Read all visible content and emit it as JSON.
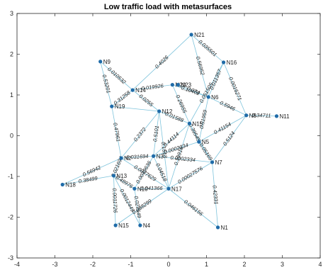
{
  "chart_data": {
    "type": "network",
    "title": "Low traffic load with metasurfaces",
    "xlim": [
      -4,
      4
    ],
    "ylim": [
      -3,
      3
    ],
    "xticks": [
      -4,
      -3,
      -2,
      -1,
      0,
      1,
      2,
      3,
      4
    ],
    "yticks": [
      -3,
      -2,
      -1,
      0,
      1,
      2,
      3
    ],
    "grid": false,
    "colors": {
      "node": "#1f6ba8",
      "edge": "#7fc4dc",
      "axes": "#262626"
    },
    "nodes": [
      {
        "name": "N1",
        "x": 1.3,
        "y": -2.25
      },
      {
        "name": "N2",
        "x": -1.25,
        "y": -0.55
      },
      {
        "name": "N3",
        "x": -0.4,
        "y": -0.5
      },
      {
        "name": "N4",
        "x": -0.75,
        "y": -2.2
      },
      {
        "name": "N5",
        "x": 0.8,
        "y": -0.15
      },
      {
        "name": "N6",
        "x": 1.05,
        "y": 0.95
      },
      {
        "name": "N7",
        "x": 1.15,
        "y": -0.65
      },
      {
        "name": "N8",
        "x": 2.05,
        "y": 0.5
      },
      {
        "name": "N9",
        "x": -1.8,
        "y": 1.82
      },
      {
        "name": "N10",
        "x": -0.9,
        "y": -1.3
      },
      {
        "name": "N11",
        "x": 2.85,
        "y": 0.48
      },
      {
        "name": "N12",
        "x": -0.25,
        "y": 0.6
      },
      {
        "name": "N13",
        "x": -1.45,
        "y": -0.98
      },
      {
        "name": "N14",
        "x": -0.95,
        "y": 1.12
      },
      {
        "name": "N15",
        "x": 0.55,
        "y": 0.3
      },
      {
        "name": "N16",
        "x": 1.45,
        "y": 1.8
      },
      {
        "name": "N17",
        "x": 0.0,
        "y": -1.3
      },
      {
        "name": "N18",
        "x": -2.8,
        "y": -1.2
      },
      {
        "name": "N19",
        "x": -1.5,
        "y": 0.72
      },
      {
        "name": "N20",
        "x": 0.1,
        "y": 1.25
      },
      {
        "name": "N21",
        "x": 0.6,
        "y": 2.48
      },
      {
        "name": "N23",
        "x": 0.25,
        "y": 1.25
      },
      {
        "name": "N15b",
        "x": -1.4,
        "y": -2.2
      }
    ],
    "node_labels": {
      "N15b": "N15"
    },
    "edges": [
      {
        "from": "N21",
        "to": "N16",
        "label": "0.035501"
      },
      {
        "from": "N21",
        "to": "N14",
        "label": "0.4026"
      },
      {
        "from": "N21",
        "to": "N6",
        "label": "0.56952"
      },
      {
        "from": "N16",
        "to": "N8",
        "label": "0.0016271"
      },
      {
        "from": "N16",
        "to": "N6",
        "label": "0.011357"
      },
      {
        "from": "N16",
        "to": "N15",
        "label": "0.051505"
      },
      {
        "from": "N9",
        "to": "N19",
        "label": "0.53201"
      },
      {
        "from": "N9",
        "to": "N14",
        "label": "0.010532"
      },
      {
        "from": "N14",
        "to": "N20",
        "label": "0.019926"
      },
      {
        "from": "N14",
        "to": "N12",
        "label": "0.0255"
      },
      {
        "from": "N19",
        "to": "N14",
        "label": "0.31258"
      },
      {
        "from": "N19",
        "to": "N12",
        "label": ""
      },
      {
        "from": "N19",
        "to": "N2",
        "label": "0.47961"
      },
      {
        "from": "N20",
        "to": "N6",
        "label": "0.10402"
      },
      {
        "from": "N20",
        "to": "N15",
        "label": "0.26955"
      },
      {
        "from": "N23",
        "to": "N6",
        "label": "0.074"
      },
      {
        "from": "N6",
        "to": "N8",
        "label": "0.5946"
      },
      {
        "from": "N6",
        "to": "N5",
        "label": "0.51959"
      },
      {
        "from": "N8",
        "to": "N11",
        "label": "0.34711"
      },
      {
        "from": "N8",
        "to": "N5",
        "label": "0.41154"
      },
      {
        "from": "N8",
        "to": "N7",
        "label": "0.5124"
      },
      {
        "from": "N12",
        "to": "N15",
        "label": "0.01588"
      },
      {
        "from": "N12",
        "to": "N3",
        "label": "0.5101"
      },
      {
        "from": "N12",
        "to": "N2",
        "label": "0.2372"
      },
      {
        "from": "N15",
        "to": "N5",
        "label": "0.39545"
      },
      {
        "from": "N15",
        "to": "N3",
        "label": "0.44114"
      },
      {
        "from": "N15",
        "to": "N17",
        "label": "0.19916"
      },
      {
        "from": "N5",
        "to": "N3",
        "label": "0.0002334"
      },
      {
        "from": "N5",
        "to": "N7",
        "label": "0.05169"
      },
      {
        "from": "N3",
        "to": "N2",
        "label": "0.031694"
      },
      {
        "from": "N3",
        "to": "N17",
        "label": "0.04518"
      },
      {
        "from": "N3",
        "to": "N7",
        "label": "0.0002334"
      },
      {
        "from": "N3",
        "to": "N10",
        "label": "0.0039636"
      },
      {
        "from": "N2",
        "to": "N13",
        "label": "0.021694"
      },
      {
        "from": "N2",
        "to": "N18",
        "label": "0.56942"
      },
      {
        "from": "N2",
        "to": "N17",
        "label": "0.0077629"
      },
      {
        "from": "N13",
        "to": "N18",
        "label": "0.38499"
      },
      {
        "from": "N13",
        "to": "N15b",
        "label": "0.0011726"
      },
      {
        "from": "N13",
        "to": "N10",
        "label": "0.48976"
      },
      {
        "from": "N13",
        "to": "N4",
        "label": "0.0012449"
      },
      {
        "from": "N10",
        "to": "N17",
        "label": "0.041366"
      },
      {
        "from": "N10",
        "to": "N4",
        "label": "0.027649"
      },
      {
        "from": "N15b",
        "to": "N17",
        "label": "0.038299"
      },
      {
        "from": "N17",
        "to": "N7",
        "label": "0.00027576"
      },
      {
        "from": "N17",
        "to": "N1",
        "label": "0.046156"
      },
      {
        "from": "N7",
        "to": "N1",
        "label": "0.42331"
      },
      {
        "from": "N12",
        "to": "N17",
        "label": "0.1518"
      },
      {
        "from": "N15",
        "to": "N7",
        "label": ""
      }
    ]
  }
}
